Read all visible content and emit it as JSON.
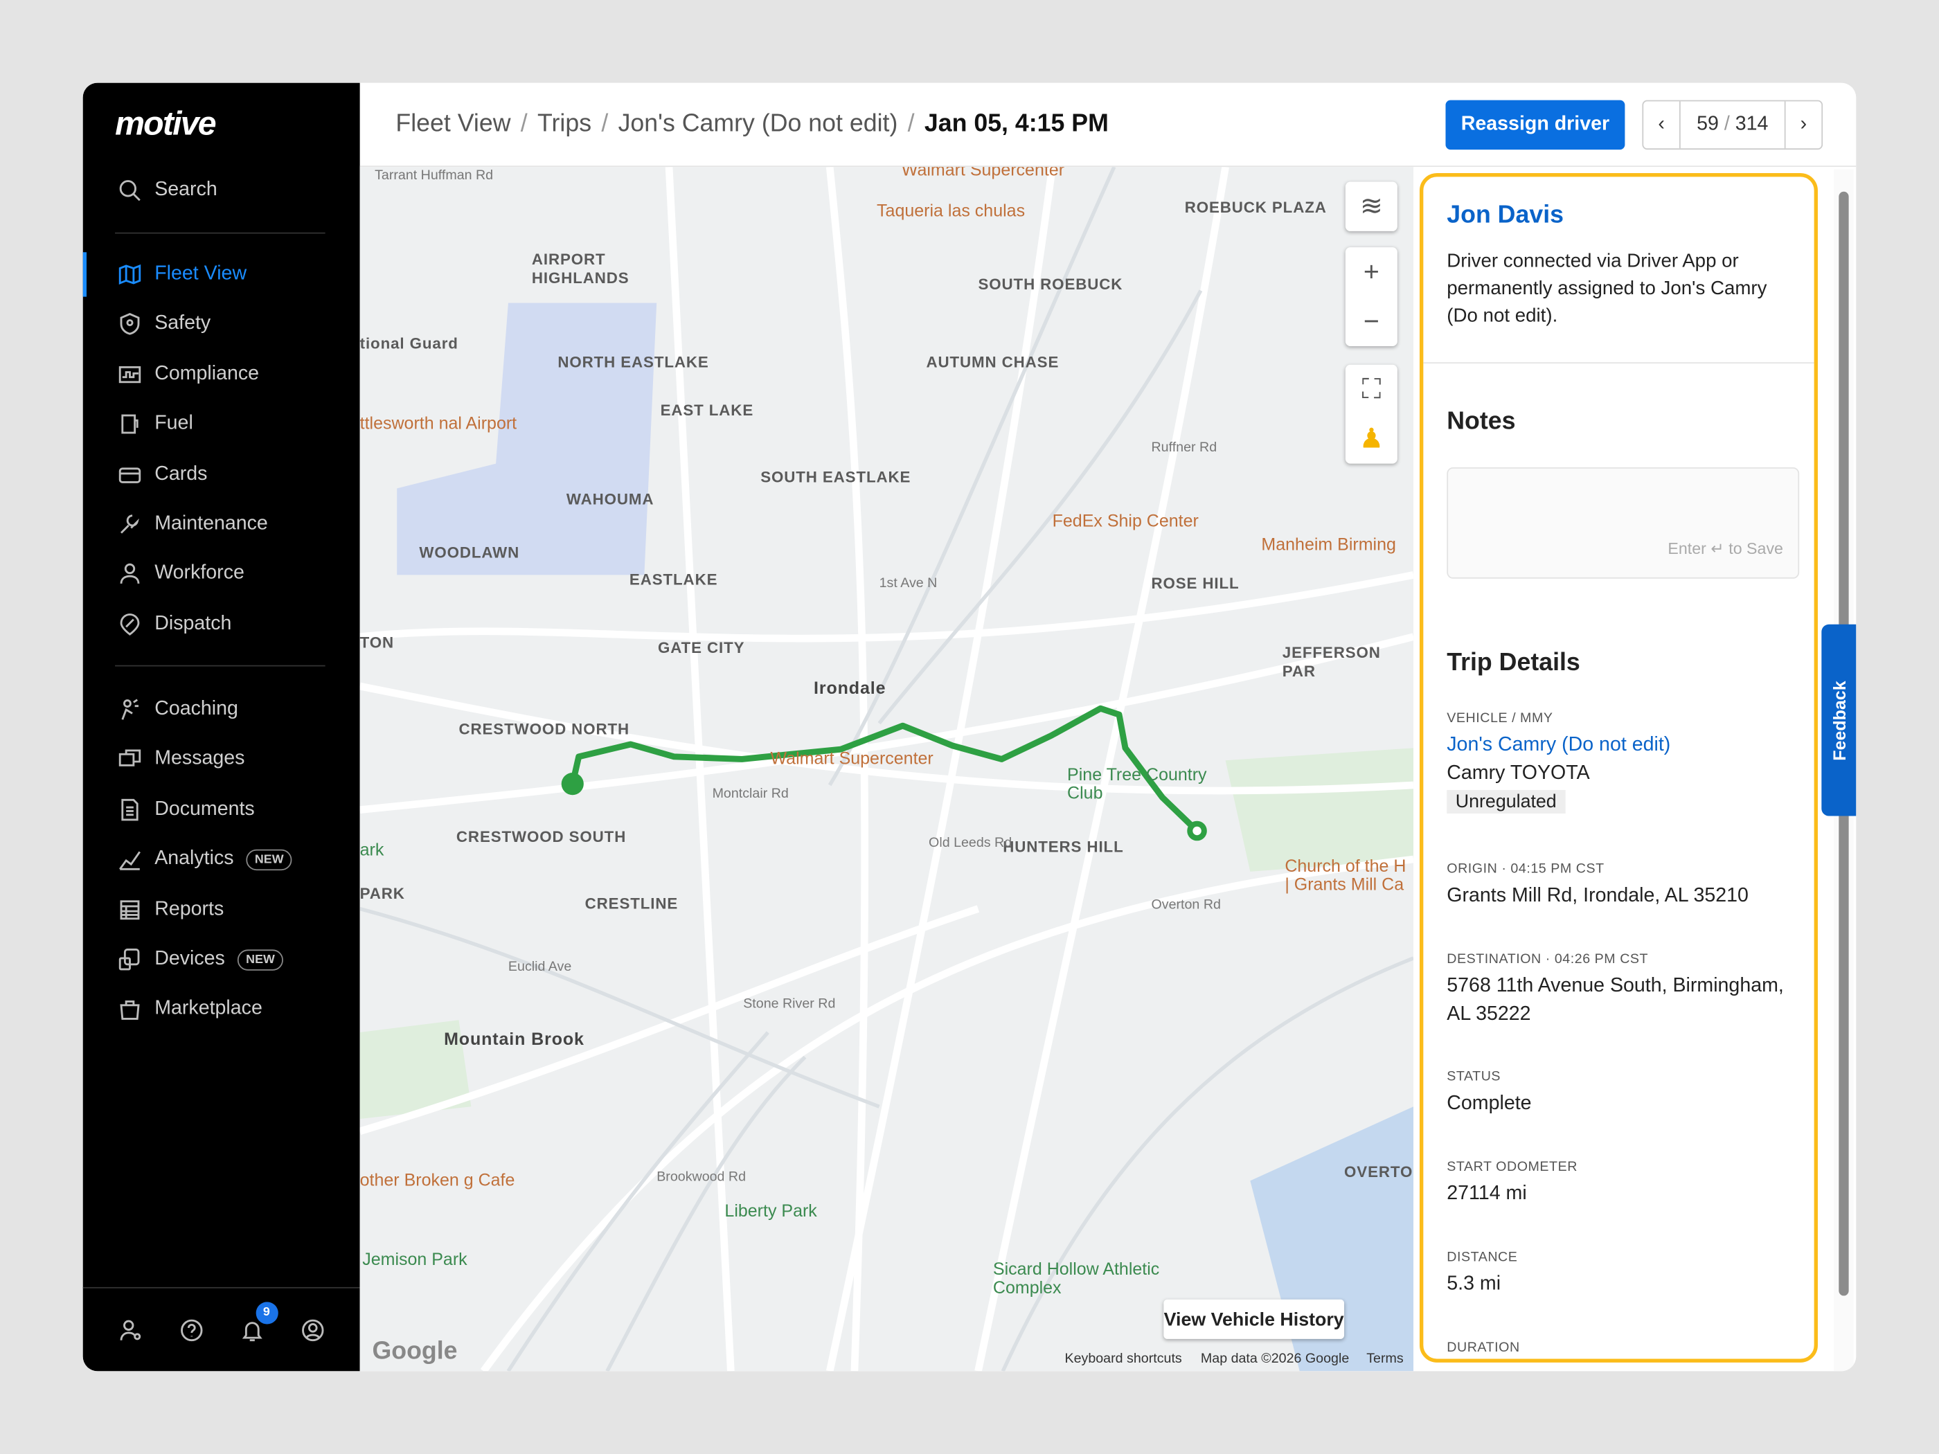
{
  "sidebar": {
    "logo": "motive",
    "search": "Search",
    "items": [
      {
        "label": "Fleet View",
        "icon": "map-icon",
        "active": true
      },
      {
        "label": "Safety",
        "icon": "shield-icon"
      },
      {
        "label": "Compliance",
        "icon": "compliance-icon"
      },
      {
        "label": "Fuel",
        "icon": "fuel-icon"
      },
      {
        "label": "Cards",
        "icon": "card-icon"
      },
      {
        "label": "Maintenance",
        "icon": "wrench-icon"
      },
      {
        "label": "Workforce",
        "icon": "person-icon"
      },
      {
        "label": "Dispatch",
        "icon": "dispatch-icon"
      }
    ],
    "items2": [
      {
        "label": "Coaching",
        "icon": "coaching-icon"
      },
      {
        "label": "Messages",
        "icon": "messages-icon"
      },
      {
        "label": "Documents",
        "icon": "document-icon"
      },
      {
        "label": "Analytics",
        "icon": "analytics-icon",
        "badge": "NEW"
      },
      {
        "label": "Reports",
        "icon": "reports-icon"
      },
      {
        "label": "Devices",
        "icon": "devices-icon",
        "badge": "NEW"
      },
      {
        "label": "Marketplace",
        "icon": "marketplace-icon"
      }
    ],
    "notification_count": "9"
  },
  "header": {
    "breadcrumb": [
      "Fleet View",
      "Trips",
      "Jon's Camry (Do not edit)",
      "Jan 05, 4:15 PM"
    ],
    "reassign": "Reassign driver",
    "pager": {
      "current": "59",
      "total": "314",
      "sep": "/"
    }
  },
  "map": {
    "labels": [
      "Walmart Supercenter",
      "Taqueria las chulas",
      "ROEBUCK PLAZA",
      "AIRPORT HIGHLANDS",
      "SOUTH ROEBUCK",
      "tional Guard",
      "NORTH EASTLAKE",
      "AUTUMN CHASE",
      "EAST LAKE",
      "ttlesworth nal Airport",
      "SOUTH EASTLAKE",
      "WAHOUMA",
      "FedEx Ship Center",
      "Manheim Birming",
      "WOODLAWN",
      "ROSE HILL",
      "EASTLAKE",
      "JEFFERSON PAR",
      "GATE CITY",
      "TON",
      "Irondale",
      "CRESTWOOD NORTH",
      "Walmart Supercenter",
      "Pine Tree Country Club",
      "HUNTERS HILL",
      "CRESTWOOD SOUTH",
      "Church of the H | Grants Mill Ca",
      "PARK",
      "CRESTLINE",
      "Mountain Brook",
      "OVERTO",
      "other Broken g Cafe",
      "Liberty Park",
      "Jemison Park",
      "Sicard Hollow Athletic Complex",
      "Tarrant Huffman Rd",
      "Montclair Rd",
      "Old Leeds Rd",
      "Overton Rd",
      "Stone River Rd",
      "Euclid Ave",
      "Ruffner Rd",
      "1st Ave N",
      "Brookwood Rd",
      "ark"
    ],
    "view_history": "View Vehicle History",
    "attribution": [
      "Keyboard shortcuts",
      "Map data ©2026 Google",
      "Terms"
    ],
    "google": "Google",
    "route_color": "#2ea043"
  },
  "panel": {
    "driver": "Jon Davis",
    "driver_desc": "Driver connected via Driver App or permanently assigned to Jon's Camry (Do not edit).",
    "notes_title": "Notes",
    "notes_hint": "Enter ↵ to Save",
    "notes_value": "",
    "trip_title": "Trip Details",
    "vehicle_label": "VEHICLE / MMY",
    "vehicle_link": "Jon's Camry (Do not edit)",
    "vehicle_mmy": "Camry TOYOTA",
    "vehicle_tag": "Unregulated",
    "origin_label": "ORIGIN",
    "origin_time": "04:15 PM CST",
    "origin": "Grants Mill Rd, Irondale, AL 35210",
    "dest_label": "DESTINATION",
    "dest_time": "04:26 PM CST",
    "dest": "5768 11th Avenue South, Birmingham, AL 35222",
    "status_label": "STATUS",
    "status": "Complete",
    "odo_label": "START ODOMETER",
    "odo": "27114 mi",
    "dist_label": "DISTANCE",
    "dist": "5.3 mi",
    "dur_label": "DURATION"
  },
  "feedback": "Feedback",
  "colors": {
    "accent": "#0a6fe0",
    "highlight": "#fbbc1a",
    "sidebar": "#000000"
  }
}
